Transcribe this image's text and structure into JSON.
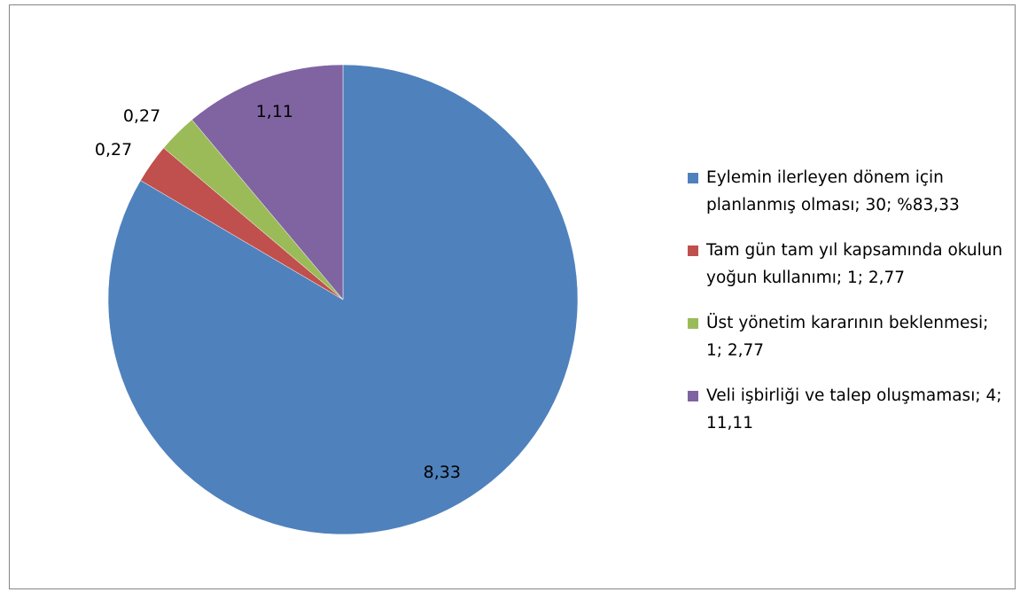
{
  "chart_data": {
    "type": "pie",
    "categories": [
      "Eylemin ilerleyen dönem için planlanmış olması; 30; %83,33",
      "Tam gün tam yıl kapsamında okulun yoğun kullanımı; 1; 2,77",
      "Üst yönetim kararının beklenmesi; 1; 2,77",
      "Veli işbirliği ve talep oluşmaması; 4; 11,11"
    ],
    "values": [
      8.33,
      0.27,
      0.27,
      1.11
    ],
    "value_labels": [
      "8,33",
      "0,27",
      "0,27",
      "1,11"
    ],
    "colors": [
      "#4f81bd",
      "#c0504d",
      "#9bbb59",
      "#8064a2"
    ],
    "legend": "right"
  }
}
